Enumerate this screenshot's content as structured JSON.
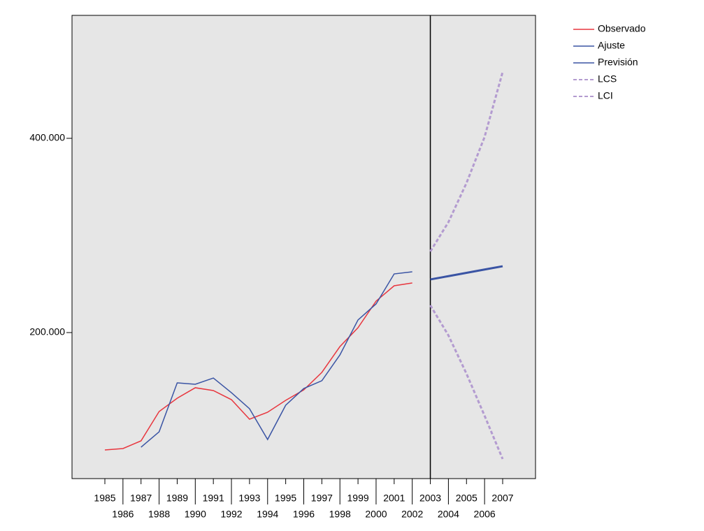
{
  "chart_data": {
    "type": "line",
    "categories": [
      "1985",
      "1986",
      "1987",
      "1988",
      "1989",
      "1990",
      "1991",
      "1992",
      "1993",
      "1994",
      "1995",
      "1996",
      "1997",
      "1998",
      "1999",
      "2000",
      "2001",
      "2002",
      "2003",
      "2004",
      "2005",
      "2006",
      "2007"
    ],
    "series": [
      {
        "name": "Observado",
        "color": "#e8363e",
        "values": [
          79140,
          80580,
          88500,
          118700,
          132400,
          143200,
          140300,
          130900,
          110800,
          118000,
          130200,
          141000,
          159000,
          185600,
          205000,
          232400,
          248200,
          251100,
          null,
          null,
          null,
          null,
          null
        ]
      },
      {
        "name": "Ajuste",
        "color": "#3a54a4",
        "values": [
          null,
          null,
          82000,
          97800,
          148200,
          146800,
          153200,
          138100,
          121600,
          89900,
          125200,
          142400,
          150400,
          177000,
          213000,
          229500,
          260400,
          262600,
          null,
          null,
          null,
          null,
          null
        ]
      },
      {
        "name": "Previsión",
        "color": "#3a54a4",
        "width": 3,
        "values": [
          null,
          null,
          null,
          null,
          null,
          null,
          null,
          null,
          null,
          null,
          null,
          null,
          null,
          null,
          null,
          null,
          null,
          null,
          254700,
          258100,
          261500,
          264900,
          268300
        ]
      },
      {
        "name": "LCS",
        "color": "#b39bd0",
        "width": 3,
        "dashed": true,
        "values": [
          null,
          null,
          null,
          null,
          null,
          null,
          null,
          null,
          null,
          null,
          null,
          null,
          null,
          null,
          null,
          null,
          null,
          null,
          283500,
          313700,
          354000,
          401400,
          468300
        ]
      },
      {
        "name": "LCI",
        "color": "#b39bd0",
        "width": 3,
        "dashed": true,
        "values": [
          null,
          null,
          null,
          null,
          null,
          null,
          null,
          null,
          null,
          null,
          null,
          null,
          null,
          null,
          null,
          null,
          null,
          null,
          228100,
          197100,
          157600,
          114400,
          69800
        ]
      }
    ],
    "ylim": [
      49640,
      526600
    ],
    "yticks": [
      {
        "value": 200000,
        "label": "200.000"
      },
      {
        "value": 400000,
        "label": "400.000"
      }
    ],
    "legend": "right"
  }
}
